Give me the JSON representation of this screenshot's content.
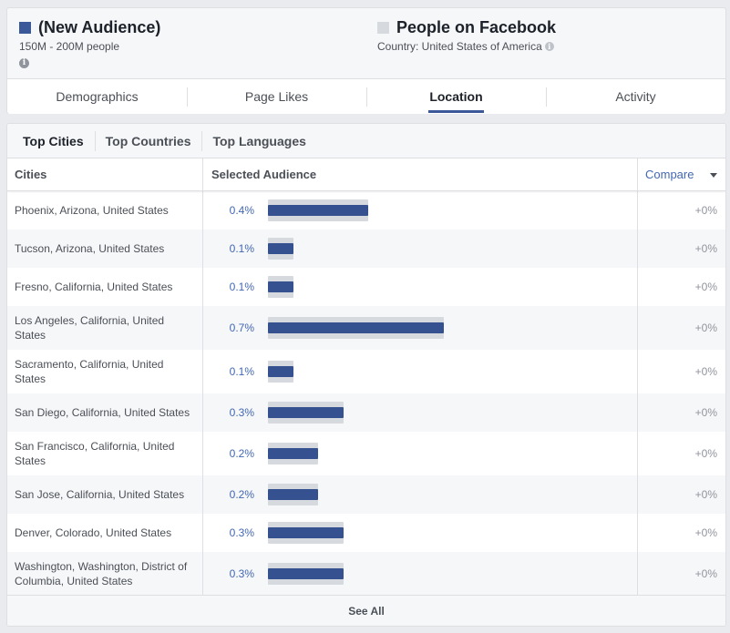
{
  "audience_left": {
    "title": "(New Audience)",
    "size": "150M - 200M people",
    "swatch_color": "#3b5998"
  },
  "audience_right": {
    "title": "People on Facebook",
    "country": "Country: United States of America",
    "swatch_color": "#d6d9de"
  },
  "tabs": [
    {
      "label": "Demographics",
      "active": false
    },
    {
      "label": "Page Likes",
      "active": false
    },
    {
      "label": "Location",
      "active": true
    },
    {
      "label": "Activity",
      "active": false
    }
  ],
  "subtabs": [
    {
      "label": "Top Cities",
      "active": true
    },
    {
      "label": "Top Countries",
      "active": false
    },
    {
      "label": "Top Languages",
      "active": false
    }
  ],
  "table": {
    "headers": {
      "cities": "Cities",
      "selected_audience": "Selected Audience",
      "compare": "Compare"
    },
    "rows": [
      {
        "city": "Phoenix, Arizona, United States",
        "pct": "0.4%",
        "value": 0.4,
        "compare": "+0%"
      },
      {
        "city": "Tucson, Arizona, United States",
        "pct": "0.1%",
        "value": 0.1,
        "compare": "+0%"
      },
      {
        "city": "Fresno, California, United States",
        "pct": "0.1%",
        "value": 0.1,
        "compare": "+0%"
      },
      {
        "city": "Los Angeles, California, United States",
        "pct": "0.7%",
        "value": 0.7,
        "compare": "+0%"
      },
      {
        "city": "Sacramento, California, United States",
        "pct": "0.1%",
        "value": 0.1,
        "compare": "+0%"
      },
      {
        "city": "San Diego, California, United States",
        "pct": "0.3%",
        "value": 0.3,
        "compare": "+0%"
      },
      {
        "city": "San Francisco, California, United States",
        "pct": "0.2%",
        "value": 0.2,
        "compare": "+0%"
      },
      {
        "city": "San Jose, California, United States",
        "pct": "0.2%",
        "value": 0.2,
        "compare": "+0%"
      },
      {
        "city": "Denver, Colorado, United States",
        "pct": "0.3%",
        "value": 0.3,
        "compare": "+0%"
      },
      {
        "city": "Washington, Washington, District of Columbia, United States",
        "pct": "0.3%",
        "value": 0.3,
        "compare": "+0%"
      }
    ]
  },
  "see_all": "See All"
}
